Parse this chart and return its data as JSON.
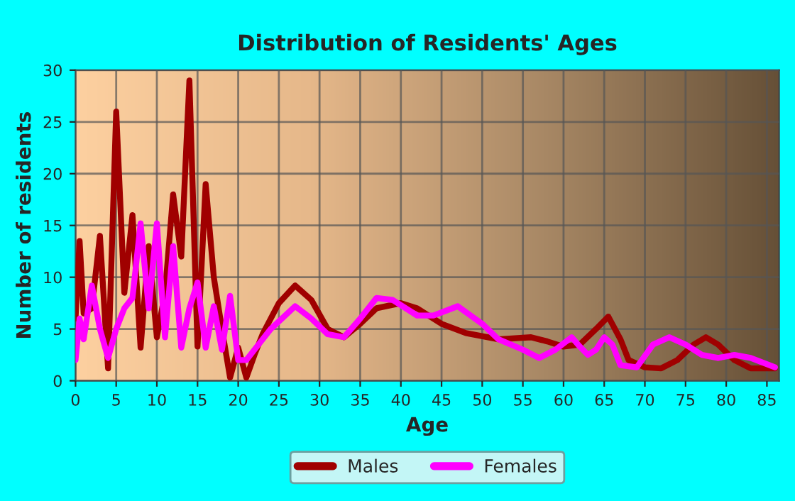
{
  "chart_data": {
    "type": "line",
    "title": "Distribution of Residents' Ages",
    "xlabel": "Age",
    "ylabel": "Number of residents",
    "xlim": [
      0,
      86.5
    ],
    "xticks": [
      0,
      5,
      10,
      15,
      20,
      25,
      30,
      35,
      40,
      45,
      50,
      55,
      60,
      65,
      70,
      75,
      80,
      85
    ],
    "ylim": [
      0,
      30
    ],
    "yticks": [
      0,
      5,
      10,
      15,
      20,
      25,
      30
    ],
    "grid": true,
    "legend": "bottom",
    "series": [
      {
        "name": "Males",
        "color": "#a00000",
        "x": [
          0,
          0.5,
          1,
          2,
          3,
          4,
          5,
          6,
          7,
          8,
          9,
          10,
          11,
          12,
          13,
          14,
          15,
          16,
          17,
          18,
          19,
          20,
          21,
          22,
          23,
          25,
          27,
          29,
          31,
          33,
          35,
          37,
          40,
          42,
          45,
          48,
          52,
          56,
          58,
          60,
          62,
          64,
          65.5,
          67,
          68,
          70,
          72,
          74,
          76,
          77.5,
          79,
          81,
          83,
          86
        ],
        "values": [
          6,
          13.5,
          6.5,
          7,
          14,
          1.2,
          26,
          8.5,
          16,
          3.2,
          13,
          4.2,
          8.5,
          18,
          12,
          29,
          3.3,
          19,
          10,
          5,
          0.3,
          3.2,
          0.3,
          2.5,
          4.5,
          7.5,
          9.2,
          7.8,
          5,
          4.2,
          5.5,
          7,
          7.5,
          7,
          5.5,
          4.6,
          4,
          4.2,
          3.8,
          3.3,
          3.5,
          5,
          6.2,
          4,
          2,
          1.3,
          1.2,
          2,
          3.5,
          4.2,
          3.5,
          2,
          1.2,
          1.2
        ]
      },
      {
        "name": "Females",
        "color": "#ff00ff",
        "x": [
          0,
          0.5,
          1,
          2,
          3,
          4,
          5,
          6,
          7,
          8,
          9,
          10,
          11,
          12,
          13,
          14,
          15,
          16,
          17,
          18,
          19,
          20,
          21,
          22,
          24,
          27,
          29,
          31,
          33,
          35,
          37,
          39,
          42,
          44,
          47,
          50,
          52,
          55,
          57,
          59,
          61,
          62,
          63,
          64,
          65,
          66,
          67,
          69,
          71,
          73,
          75,
          77,
          79,
          81,
          83,
          86
        ],
        "values": [
          2,
          6,
          4,
          9.2,
          5,
          2.2,
          5,
          7,
          8,
          15.2,
          7,
          15.2,
          4.2,
          13,
          3.2,
          7,
          9.5,
          3.2,
          7.2,
          3,
          8.2,
          2,
          2,
          3,
          5,
          7.2,
          6,
          4.5,
          4.2,
          6,
          8,
          7.8,
          6.3,
          6.3,
          7.2,
          5.5,
          4,
          3,
          2.2,
          3,
          4.2,
          3.3,
          2.5,
          3,
          4.2,
          3.5,
          1.5,
          1.3,
          3.5,
          4.2,
          3.5,
          2.5,
          2.2,
          2.5,
          2.2,
          1.3
        ]
      }
    ]
  }
}
